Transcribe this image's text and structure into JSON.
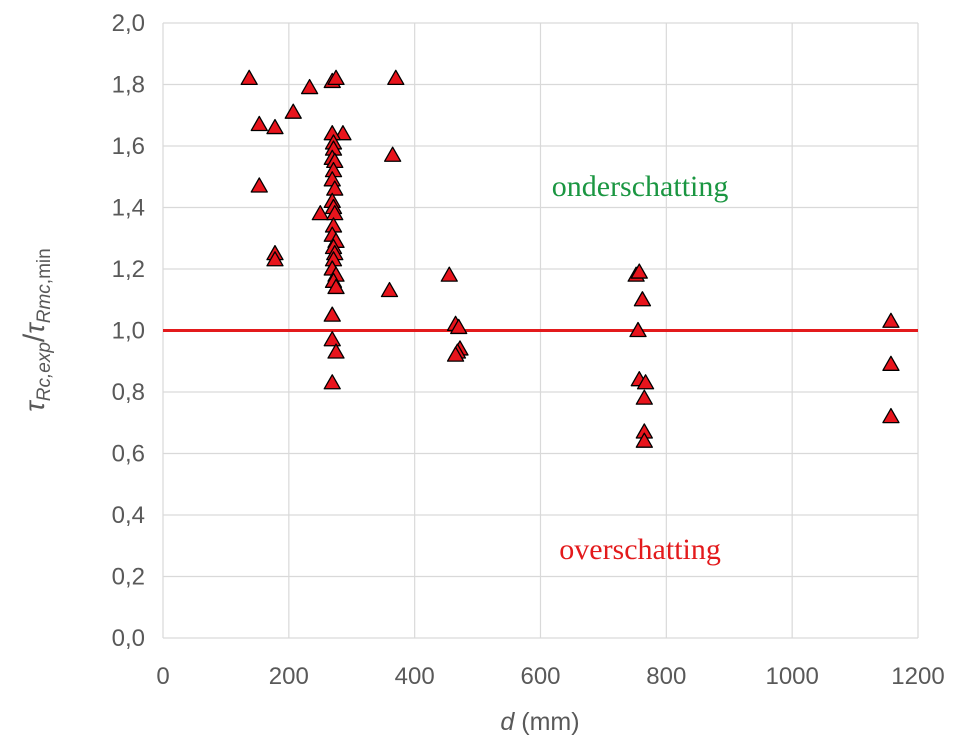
{
  "chart_data": {
    "type": "scatter",
    "xlabel": {
      "italic": "d",
      "rest": " (mm)"
    },
    "ylabel": {
      "tau1": "τ",
      "sub1": "Rc,exp",
      "slash": "/",
      "tau2": "τ",
      "sub2a": "Rmc",
      "sub2b": ",min"
    },
    "xlim": [
      0,
      1200
    ],
    "ylim": [
      0,
      2.0
    ],
    "x_ticks": [
      "0",
      "200",
      "400",
      "600",
      "800",
      "1000",
      "1200"
    ],
    "y_ticks": [
      "0,0",
      "0,2",
      "0,4",
      "0,6",
      "0,8",
      "1,0",
      "1,2",
      "1,4",
      "1,6",
      "1,8",
      "2,0"
    ],
    "grid": true,
    "reference_line": {
      "y": 1.0,
      "color": "#e31a1c"
    },
    "marker": {
      "shape": "triangle",
      "fill": "#e8141c",
      "stroke": "#000000"
    },
    "annotations": [
      {
        "text": "onderschatting",
        "x": 825,
        "y": 1.47,
        "color": "#1a9641"
      },
      {
        "text": "overschatting",
        "x": 825,
        "y": 0.29,
        "color": "#e31a1c"
      }
    ],
    "points": [
      [
        137,
        1.82
      ],
      [
        153,
        1.67
      ],
      [
        153,
        1.47
      ],
      [
        178,
        1.66
      ],
      [
        178,
        1.25
      ],
      [
        178,
        1.23
      ],
      [
        207,
        1.71
      ],
      [
        233,
        1.79
      ],
      [
        250,
        1.38
      ],
      [
        269,
        1.81
      ],
      [
        275,
        1.82
      ],
      [
        286,
        1.64
      ],
      [
        370,
        1.82
      ],
      [
        365,
        1.57
      ],
      [
        269,
        1.64
      ],
      [
        271,
        1.61
      ],
      [
        271,
        1.59
      ],
      [
        269,
        1.56
      ],
      [
        273,
        1.55
      ],
      [
        271,
        1.52
      ],
      [
        269,
        1.49
      ],
      [
        273,
        1.46
      ],
      [
        269,
        1.42
      ],
      [
        271,
        1.4
      ],
      [
        273,
        1.38
      ],
      [
        271,
        1.34
      ],
      [
        269,
        1.31
      ],
      [
        275,
        1.29
      ],
      [
        271,
        1.27
      ],
      [
        273,
        1.25
      ],
      [
        271,
        1.23
      ],
      [
        269,
        1.2
      ],
      [
        275,
        1.18
      ],
      [
        271,
        1.16
      ],
      [
        275,
        1.14
      ],
      [
        269,
        1.05
      ],
      [
        269,
        0.97
      ],
      [
        275,
        0.93
      ],
      [
        269,
        0.83
      ],
      [
        360,
        1.13
      ],
      [
        455,
        1.18
      ],
      [
        465,
        1.02
      ],
      [
        470,
        1.01
      ],
      [
        472,
        0.94
      ],
      [
        468,
        0.93
      ],
      [
        465,
        0.92
      ],
      [
        752,
        1.18
      ],
      [
        757,
        1.19
      ],
      [
        762,
        1.1
      ],
      [
        755,
        1.0
      ],
      [
        757,
        0.84
      ],
      [
        767,
        0.83
      ],
      [
        765,
        0.78
      ],
      [
        765,
        0.67
      ],
      [
        765,
        0.64
      ],
      [
        1157,
        1.03
      ],
      [
        1157,
        0.89
      ],
      [
        1157,
        0.72
      ]
    ]
  }
}
